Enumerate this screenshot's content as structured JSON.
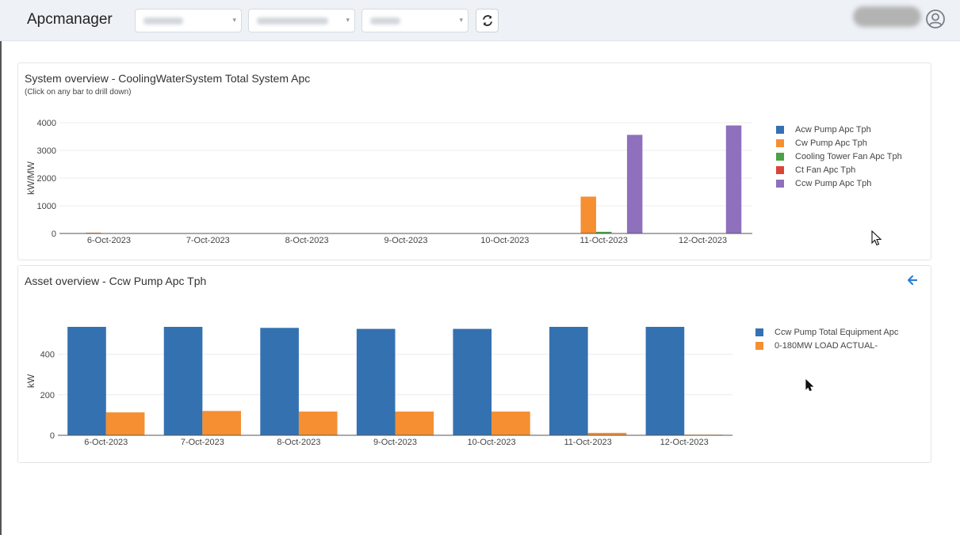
{
  "app": {
    "title": "Apcmanager"
  },
  "toolbar": {
    "refresh_icon": "refresh-icon",
    "avatar_icon": "user-avatar-icon"
  },
  "colors": {
    "blue": "#3471b0",
    "orange": "#f58f32",
    "green": "#4aa146",
    "red": "#db4436",
    "purple": "#8e70bd",
    "accent": "#2f7fd8"
  },
  "system_panel": {
    "title": "System overview - CoolingWaterSystem Total System Apc",
    "subtitle": "(Click on any bar to drill down)"
  },
  "asset_panel": {
    "title": "Asset overview - Ccw Pump Apc Tph",
    "back_icon": "arrow-left-icon"
  },
  "chart_data": [
    {
      "type": "bar",
      "title": "System overview - CoolingWaterSystem Total System Apc",
      "ylabel": "kW/MW",
      "ylim": [
        0,
        4000
      ],
      "yticks": [
        0,
        1000,
        2000,
        3000,
        4000
      ],
      "categories": [
        "6-Oct-2023",
        "7-Oct-2023",
        "8-Oct-2023",
        "9-Oct-2023",
        "10-Oct-2023",
        "11-Oct-2023",
        "12-Oct-2023"
      ],
      "legend_position": "right",
      "series": [
        {
          "name": "Acw Pump Apc Tph",
          "color": "#3471b0",
          "values": [
            5,
            5,
            5,
            5,
            5,
            5,
            5
          ]
        },
        {
          "name": "Cw Pump Apc Tph",
          "color": "#f58f32",
          "values": [
            30,
            5,
            5,
            5,
            5,
            1330,
            5
          ]
        },
        {
          "name": "Cooling Tower Fan Apc Tph",
          "color": "#4aa146",
          "values": [
            5,
            5,
            5,
            5,
            5,
            60,
            5
          ]
        },
        {
          "name": "Ct Fan Apc Tph",
          "color": "#db4436",
          "values": [
            5,
            5,
            5,
            5,
            5,
            5,
            5
          ]
        },
        {
          "name": "Ccw Pump Apc Tph",
          "color": "#8e70bd",
          "values": [
            5,
            5,
            5,
            5,
            5,
            3560,
            3900
          ]
        }
      ]
    },
    {
      "type": "bar",
      "title": "Asset overview - Ccw Pump Apc Tph",
      "ylabel": "kW",
      "ylim": [
        0,
        535
      ],
      "yticks": [
        0,
        200,
        400
      ],
      "categories": [
        "6-Oct-2023",
        "7-Oct-2023",
        "8-Oct-2023",
        "9-Oct-2023",
        "10-Oct-2023",
        "11-Oct-2023",
        "12-Oct-2023"
      ],
      "legend_position": "right",
      "series": [
        {
          "name": "Ccw Pump Total Equipment Apc",
          "color": "#3471b0",
          "values": [
            535,
            535,
            530,
            525,
            525,
            535,
            535
          ]
        },
        {
          "name": "0-180MW LOAD ACTUAL-",
          "color": "#f58f32",
          "values": [
            113,
            120,
            117,
            117,
            117,
            12,
            3
          ]
        }
      ]
    }
  ]
}
